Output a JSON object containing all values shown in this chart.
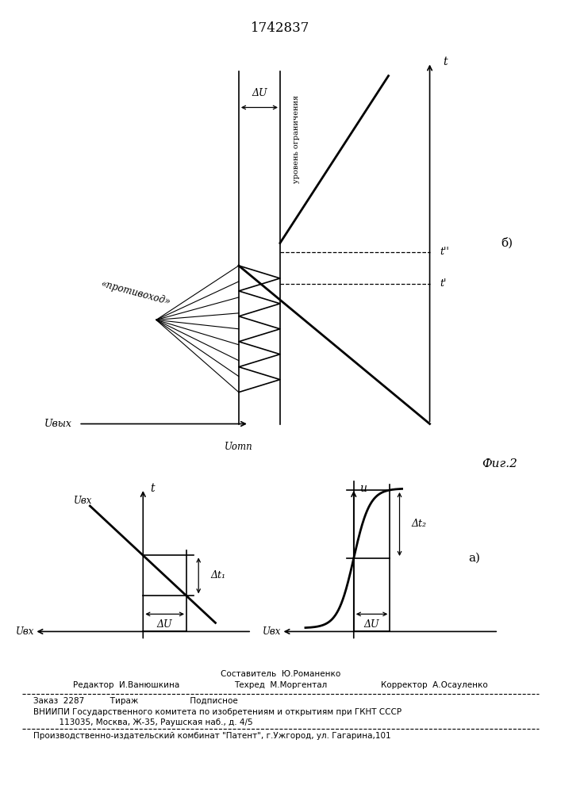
{
  "title": "1742837",
  "fig_label": "Фиг.2",
  "panel_b": {
    "label": "б)",
    "label_t": "t",
    "label_uvyx": "Uвых",
    "label_uotp": "Uотп",
    "label_protivokhod": "«противоход»",
    "label_uroven": "уровень ограничения",
    "label_dU": "ΔU",
    "label_t1": "t'",
    "label_t2": "t''"
  },
  "panel_al": {
    "label_t": "t",
    "label_ubx_top": "Uвх",
    "label_ubx_bot": "Uвх",
    "label_dU": "ΔU",
    "label_dt1": "Δt₁"
  },
  "panel_ar": {
    "label_u": "u",
    "label_ubx": "Uвх",
    "label_dU": "ΔU",
    "label_dt2": "Δt₂",
    "label": "а)"
  }
}
